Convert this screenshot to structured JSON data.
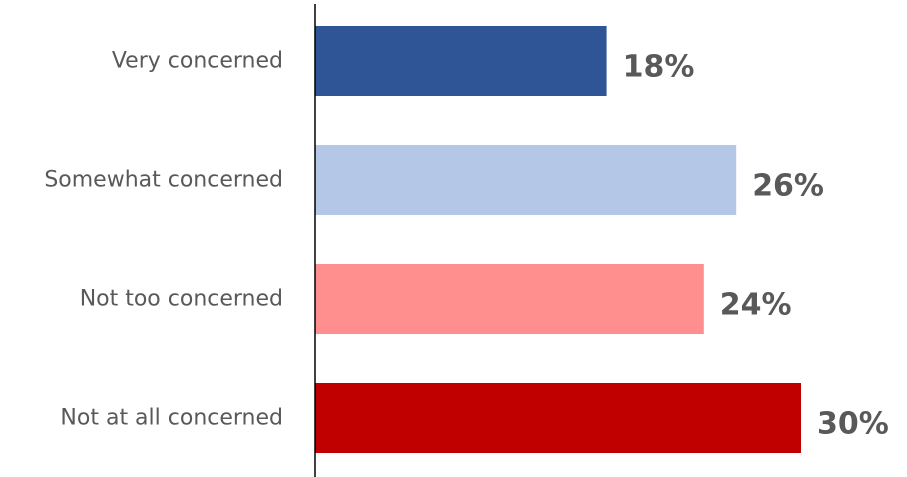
{
  "chart_data": {
    "type": "bar",
    "orientation": "horizontal",
    "categories": [
      "Very concerned",
      "Somewhat concerned",
      "Not too concerned",
      "Not at all concerned"
    ],
    "values": [
      18,
      26,
      24,
      30
    ],
    "value_labels": [
      "18%",
      "26%",
      "24%",
      "30%"
    ],
    "bar_colors": [
      "#2f5597",
      "#b4c7e7",
      "#ff8f8f",
      "#c00000"
    ],
    "xlim": [
      0,
      30
    ],
    "grid": false,
    "legend": "none",
    "title": "",
    "xlabel": "",
    "ylabel": ""
  }
}
